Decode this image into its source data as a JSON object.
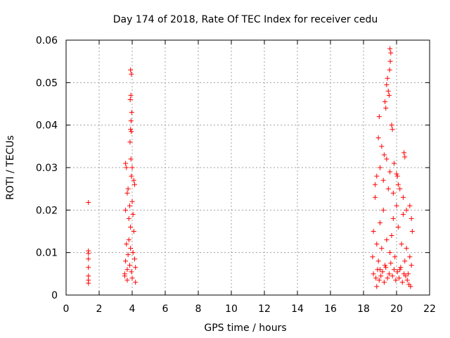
{
  "chart_data": {
    "type": "scatter",
    "title": "Day 174 of 2018, Rate Of TEC Index for receiver cedu",
    "xlabel": "GPS time / hours",
    "ylabel": "ROTI / TECUs",
    "xlim": [
      0,
      22
    ],
    "ylim": [
      0,
      0.06
    ],
    "xticks": [
      0,
      2,
      4,
      6,
      8,
      10,
      12,
      14,
      16,
      18,
      20,
      22
    ],
    "yticks": [
      0,
      0.01,
      0.02,
      0.03,
      0.04,
      0.05,
      0.06
    ],
    "xtick_labels": [
      "0",
      "2",
      "4",
      "6",
      "8",
      "10",
      "12",
      "14",
      "16",
      "18",
      "20",
      "22"
    ],
    "ytick_labels": [
      "0",
      "0.01",
      "0.02",
      "0.03",
      "0.04",
      "0.05",
      "0.06"
    ],
    "grid": true,
    "marker": "+",
    "color": "#ff0000",
    "series": [
      {
        "name": "ROTI",
        "x": [
          1.35,
          1.35,
          1.35,
          1.35,
          1.35,
          1.35,
          1.35,
          1.35,
          3.55,
          3.6,
          3.65,
          3.7,
          3.75,
          3.8,
          3.85,
          3.9,
          3.95,
          4.0,
          4.05,
          4.1,
          4.15,
          4.2,
          3.6,
          3.7,
          3.8,
          3.9,
          4.0,
          4.1,
          3.65,
          3.75,
          3.85,
          3.95,
          4.05,
          4.15,
          3.9,
          3.95,
          3.92,
          3.88,
          3.97,
          3.93,
          3.9,
          3.95,
          3.87,
          3.92,
          4.0,
          3.6,
          3.7,
          4.2,
          3.55,
          18.55,
          18.6,
          18.7,
          18.8,
          18.9,
          19.0,
          19.1,
          19.2,
          19.3,
          19.4,
          19.5,
          19.6,
          19.7,
          19.8,
          19.9,
          20.0,
          20.1,
          20.2,
          20.3,
          20.4,
          20.5,
          20.6,
          20.7,
          20.8,
          20.9,
          18.6,
          18.75,
          18.85,
          18.95,
          19.05,
          19.15,
          19.25,
          19.35,
          19.45,
          19.55,
          19.65,
          19.75,
          19.85,
          19.95,
          20.05,
          20.15,
          20.25,
          20.35,
          20.45,
          20.55,
          20.65,
          20.75,
          20.85,
          18.7,
          18.8,
          19.0,
          19.2,
          19.4,
          19.6,
          19.8,
          20.0,
          20.2,
          20.4,
          20.6,
          20.8,
          19.6,
          19.65,
          19.62,
          19.58,
          19.45,
          19.4,
          19.5,
          19.55,
          19.3,
          19.35,
          18.95,
          18.9,
          19.1,
          19.25,
          19.7,
          19.75,
          20.45,
          20.5,
          20.05,
          20.1,
          20.9,
          20.95,
          19.85,
          19.0,
          18.8
        ],
        "y": [
          0.0218,
          0.0104,
          0.0098,
          0.0085,
          0.0065,
          0.0045,
          0.0035,
          0.0028,
          0.005,
          0.008,
          0.012,
          0.006,
          0.0095,
          0.013,
          0.007,
          0.011,
          0.0055,
          0.004,
          0.01,
          0.015,
          0.0085,
          0.0065,
          0.02,
          0.024,
          0.018,
          0.016,
          0.022,
          0.027,
          0.03,
          0.025,
          0.021,
          0.028,
          0.019,
          0.026,
          0.053,
          0.052,
          0.047,
          0.046,
          0.043,
          0.041,
          0.039,
          0.0385,
          0.036,
          0.032,
          0.03,
          0.031,
          0.0035,
          0.003,
          0.0045,
          0.009,
          0.015,
          0.023,
          0.012,
          0.008,
          0.017,
          0.011,
          0.02,
          0.007,
          0.013,
          0.025,
          0.01,
          0.014,
          0.018,
          0.009,
          0.021,
          0.016,
          0.006,
          0.012,
          0.019,
          0.008,
          0.011,
          0.005,
          0.009,
          0.007,
          0.005,
          0.004,
          0.006,
          0.0035,
          0.0045,
          0.0055,
          0.003,
          0.0065,
          0.004,
          0.005,
          0.0075,
          0.0045,
          0.006,
          0.0035,
          0.0055,
          0.004,
          0.0065,
          0.003,
          0.005,
          0.0045,
          0.0035,
          0.0025,
          0.002,
          0.026,
          0.028,
          0.03,
          0.027,
          0.032,
          0.029,
          0.024,
          0.0285,
          0.025,
          0.023,
          0.02,
          0.021,
          0.058,
          0.057,
          0.055,
          0.053,
          0.051,
          0.0495,
          0.048,
          0.047,
          0.0455,
          0.044,
          0.042,
          0.037,
          0.035,
          0.033,
          0.04,
          0.039,
          0.0335,
          0.0325,
          0.028,
          0.026,
          0.018,
          0.015,
          0.031,
          0.006,
          0.002
        ]
      }
    ]
  }
}
